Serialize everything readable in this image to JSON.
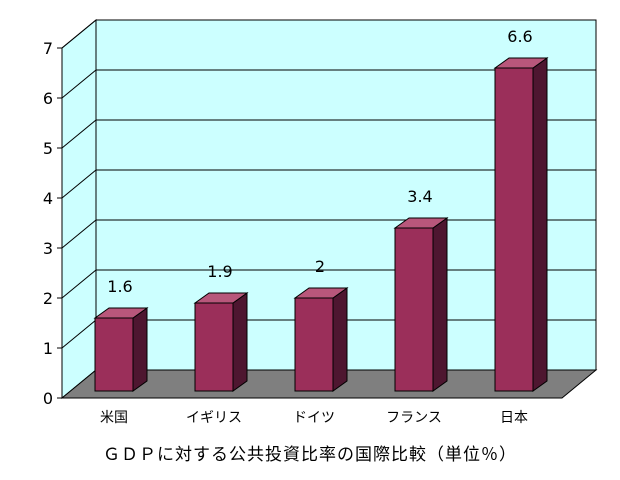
{
  "chart_data": {
    "type": "bar",
    "title": "ＧＤＰに対する公共投資比率の国際比較（単位％）",
    "xlabel": "",
    "ylabel": "",
    "categories": [
      "米国",
      "イギリス",
      "ドイツ",
      "フランス",
      "日本"
    ],
    "values": [
      1.6,
      1.9,
      2,
      3.4,
      6.6
    ],
    "data_labels": [
      "1.6",
      "1.9",
      "2",
      "3.4",
      "6.6"
    ],
    "y_ticks": [
      "0",
      "1",
      "2",
      "3",
      "4",
      "5",
      "6",
      "7"
    ],
    "ylim": [
      0,
      7
    ],
    "grid": true,
    "legend": "none",
    "style": "3d-column",
    "colors": {
      "bar_front": "#9b2f5a",
      "bar_side": "#4e1630",
      "bar_top": "#b8577b",
      "back_wall": "#ccffff",
      "side_wall": "#ccffff",
      "floor": "#7f7f7f",
      "grid": "#000000"
    }
  }
}
